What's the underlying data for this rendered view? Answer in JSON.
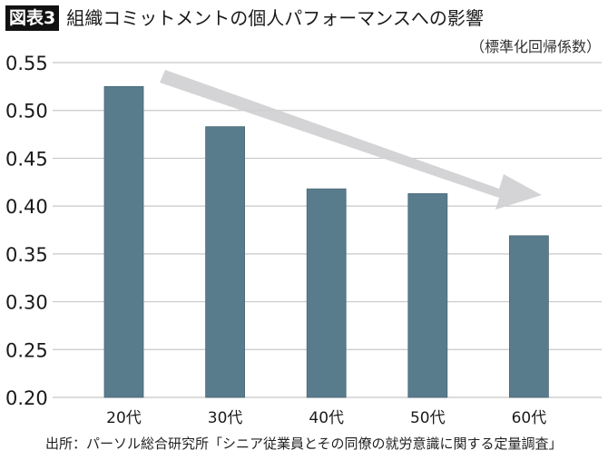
{
  "header": {
    "figure_label": "図表3",
    "title": "組織コミットメントの個人パフォーマンスへの影響",
    "unit": "（標準化回帰係数）"
  },
  "footer": {
    "source": "出所：パーソル総合研究所「シニア従業員とその同僚の就労意識に関する定量調査」"
  },
  "colors": {
    "bar": "#587c8c",
    "bar_edge": "#4a6a78",
    "grid": "#c8c8c8",
    "arrow": "#d0d0d2",
    "text": "#1a1a1a"
  },
  "chart_data": {
    "type": "bar",
    "title": "組織コミットメントの個人パフォーマンスへの影響",
    "subtitle": "（標準化回帰係数）",
    "categories": [
      "20代",
      "30代",
      "40代",
      "50代",
      "60代"
    ],
    "values": [
      0.525,
      0.483,
      0.418,
      0.413,
      0.369
    ],
    "xlabel": "",
    "ylabel": "標準化回帰係数",
    "ylim": [
      0.2,
      0.55
    ],
    "yticks": [
      0.2,
      0.25,
      0.3,
      0.35,
      0.4,
      0.45,
      0.5,
      0.55
    ],
    "ytick_labels": [
      "0.20",
      "0.25",
      "0.30",
      "0.35",
      "0.40",
      "0.45",
      "0.50",
      "0.55"
    ],
    "grid": true,
    "legend": null,
    "annotations": [
      {
        "type": "arrow",
        "description": "downward trend arrow from 20代 to 60代"
      }
    ],
    "source": "出所：パーソル総合研究所「シニア従業員とその同僚の就労意識に関する定量調査」"
  }
}
